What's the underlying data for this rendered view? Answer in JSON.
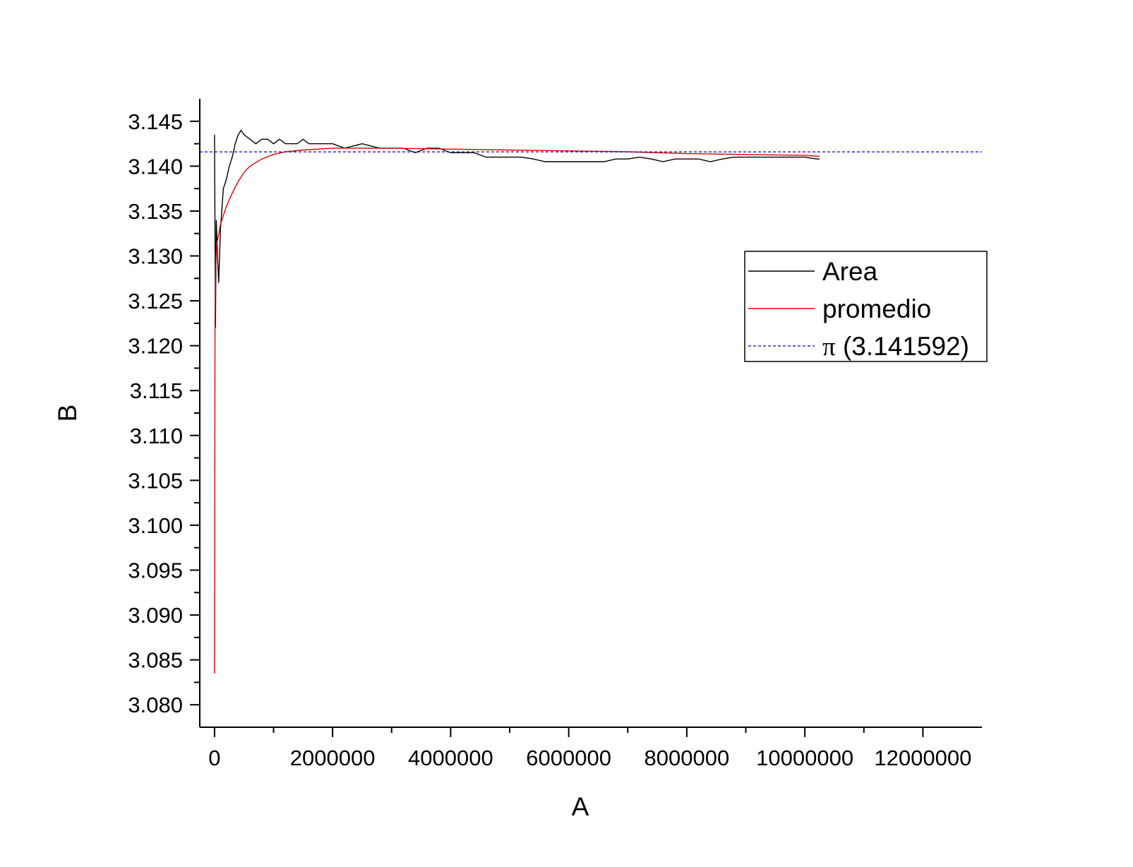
{
  "chart_data": {
    "type": "line",
    "xlabel": "A",
    "ylabel": "B",
    "xlim": [
      -250000,
      13000000
    ],
    "ylim": [
      3.0775,
      3.1475
    ],
    "x_ticks": [
      0,
      2000000,
      4000000,
      6000000,
      8000000,
      10000000,
      12000000
    ],
    "x_tick_labels": [
      "0",
      "2000000",
      "4000000",
      "6000000",
      "8000000",
      "10000000",
      "12000000"
    ],
    "y_ticks": [
      3.08,
      3.085,
      3.09,
      3.095,
      3.1,
      3.105,
      3.11,
      3.115,
      3.12,
      3.125,
      3.13,
      3.135,
      3.14,
      3.145
    ],
    "y_tick_labels": [
      "3.080",
      "3.085",
      "3.090",
      "3.095",
      "3.100",
      "3.105",
      "3.110",
      "3.115",
      "3.120",
      "3.125",
      "3.130",
      "3.135",
      "3.140",
      "3.145"
    ],
    "grid": false,
    "legend_position": "right",
    "series": [
      {
        "name": "Area",
        "color": "#000000",
        "style": "solid",
        "x": [
          0,
          15000,
          30000,
          50000,
          70000,
          100000,
          150000,
          200000,
          250000,
          300000,
          350000,
          400000,
          450000,
          500000,
          600000,
          700000,
          800000,
          900000,
          1000000,
          1100000,
          1200000,
          1300000,
          1400000,
          1500000,
          1600000,
          1800000,
          2000000,
          2200000,
          2500000,
          2800000,
          3000000,
          3200000,
          3400000,
          3600000,
          3800000,
          4000000,
          4200000,
          4400000,
          4600000,
          4800000,
          5000000,
          5200000,
          5400000,
          5600000,
          5800000,
          6000000,
          6200000,
          6400000,
          6600000,
          6800000,
          7000000,
          7200000,
          7400000,
          7600000,
          7800000,
          8000000,
          8200000,
          8400000,
          8600000,
          8800000,
          9000000,
          9200000,
          9400000,
          9600000,
          9800000,
          10000000,
          10200000,
          10250000
        ],
        "y": [
          3.1435,
          3.122,
          3.134,
          3.13,
          3.127,
          3.133,
          3.1375,
          3.1385,
          3.14,
          3.141,
          3.1425,
          3.1435,
          3.144,
          3.1435,
          3.143,
          3.1425,
          3.143,
          3.143,
          3.1425,
          3.143,
          3.1425,
          3.1425,
          3.1425,
          3.143,
          3.1425,
          3.1425,
          3.1425,
          3.142,
          3.1425,
          3.142,
          3.142,
          3.142,
          3.1415,
          3.142,
          3.142,
          3.1415,
          3.1415,
          3.1415,
          3.141,
          3.141,
          3.141,
          3.141,
          3.1408,
          3.1405,
          3.1405,
          3.1405,
          3.1405,
          3.1405,
          3.1405,
          3.1408,
          3.1408,
          3.141,
          3.1408,
          3.1405,
          3.1408,
          3.1408,
          3.1408,
          3.1405,
          3.1408,
          3.141,
          3.141,
          3.141,
          3.141,
          3.141,
          3.141,
          3.141,
          3.1408,
          3.1408
        ]
      },
      {
        "name": "promedio",
        "color": "#e00000",
        "style": "solid",
        "x": [
          0,
          8000,
          15000,
          25000,
          40000,
          60000,
          100000,
          150000,
          200000,
          300000,
          400000,
          500000,
          600000,
          800000,
          1000000,
          1200000,
          1500000,
          2000000,
          2500000,
          3000000,
          4000000,
          5000000,
          6000000,
          7000000,
          8000000,
          9000000,
          10000000,
          10250000
        ],
        "y": [
          3.0835,
          3.1225,
          3.127,
          3.13,
          3.1315,
          3.132,
          3.1335,
          3.1345,
          3.1355,
          3.137,
          3.1383,
          3.1393,
          3.14,
          3.1408,
          3.1413,
          3.1416,
          3.1418,
          3.142,
          3.142,
          3.142,
          3.1419,
          3.1418,
          3.1417,
          3.1416,
          3.1414,
          3.1413,
          3.1412,
          3.1411
        ]
      },
      {
        "name": "π (3.141592)",
        "color": "#0000cc",
        "style": "dashed",
        "x": [
          -250000,
          13000000
        ],
        "y": [
          3.141592,
          3.141592
        ]
      }
    ]
  }
}
